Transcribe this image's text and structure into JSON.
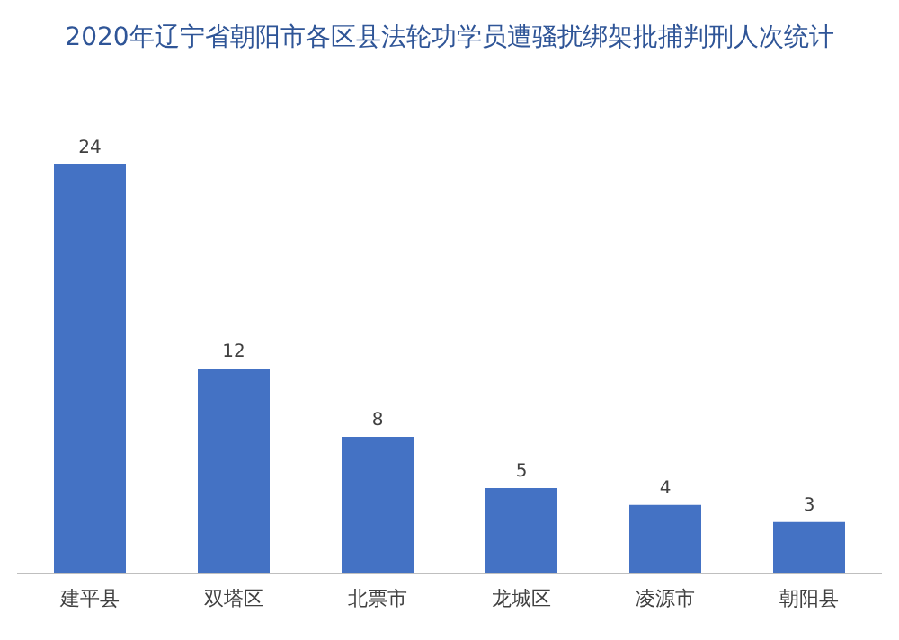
{
  "chart_data": {
    "type": "bar",
    "title": "2020年辽宁省朝阳市各区县法轮功学员遭骚扰绑架批捕判刑人次统计",
    "categories": [
      "建平县",
      "双塔区",
      "北票市",
      "龙城区",
      "凌源市",
      "朝阳县"
    ],
    "values": [
      24,
      12,
      8,
      5,
      4,
      3
    ],
    "color": "#4472c4",
    "data_labels": true,
    "grid": false,
    "legend": false
  }
}
